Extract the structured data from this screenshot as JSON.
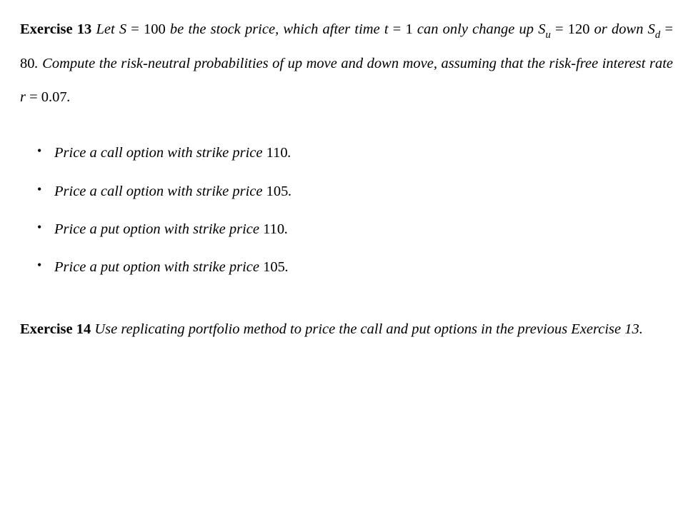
{
  "exercise13": {
    "heading": "Exercise 13",
    "text_part1": " Let ",
    "S_var": "S",
    "eq1": " = ",
    "S_val": "100",
    "text_part2": " be the stock price, which after time ",
    "t_var": "t",
    "eq2": " = ",
    "t_val": "1",
    "text_part3": " can only change up ",
    "Su_var": "S",
    "Su_sub": "u",
    "eq3": " = ",
    "Su_val": "120",
    "text_part4": " or down ",
    "Sd_var": "S",
    "Sd_sub": "d",
    "eq4": " = ",
    "Sd_val": "80",
    "text_part5": ".  Compute the risk-neutral probabilities of up move and down move, assuming that the risk-free interest rate ",
    "r_var": "r",
    "eq5": " = ",
    "r_val": "0.07",
    "period": ".",
    "bullets": [
      {
        "prefix": "Price a call option with strike price ",
        "value": "110",
        "suffix": "."
      },
      {
        "prefix": "Price a call option with strike price ",
        "value": "105",
        "suffix": "."
      },
      {
        "prefix": "Price a put option with strike price ",
        "value": "110",
        "suffix": "."
      },
      {
        "prefix": "Price a put option with strike price ",
        "value": "105",
        "suffix": "."
      }
    ]
  },
  "exercise14": {
    "heading": "Exercise 14",
    "text": " Use replicating portfolio method to price the call and put options in the previous Exercise 13."
  }
}
